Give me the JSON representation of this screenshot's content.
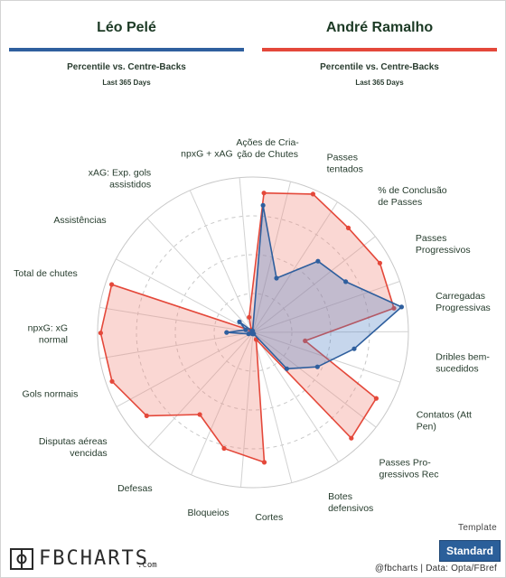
{
  "header": {
    "player1": "Léo Pelé",
    "player2": "André Ramalho",
    "subtitle": "Percentile vs. Centre-Backs",
    "period": "Last 365 Days"
  },
  "footer": {
    "template_label": "Template",
    "template_button": "Standard",
    "logo_text": "FBCHARTS",
    "logo_suffix": ".com",
    "credit": "@fbcharts | Data: Opta/FBref"
  },
  "colors": {
    "player1": "#2f5f9e",
    "player1_fill": "#4f7fc4",
    "player2": "#e4483a",
    "player2_fill": "#f28b82"
  },
  "chart_data": {
    "type": "radar",
    "range": [
      0,
      100
    ],
    "axes": [
      "Ações de Cria-\nção de Chutes",
      "Passes\ntentados",
      "% de Conclusão\nde Passes",
      "Passes\nProgressivos",
      "Carregadas\nProgressivas",
      "Dribles bem-\nsucedidos",
      "Contatos (Att\nPen)",
      "Passes Pro-\ngressivos Rec",
      "Botes\ndefensivos",
      "Cortes",
      "Bloqueios",
      "Defesas",
      "Disputas aéreas\nvencidas",
      "Gols normais",
      "npxG: xG\nnormal",
      "Total de chutes",
      "Assistências",
      "xAG: Exp. gols\nassistidos",
      "npxG + xAG"
    ],
    "series": [
      {
        "name": "Léo Pelé",
        "values": [
          82,
          38,
          62,
          68,
          97,
          66,
          47,
          32,
          1,
          1,
          1,
          1,
          1,
          3,
          17,
          5,
          11,
          1,
          1
        ]
      },
      {
        "name": "André Ramalho",
        "values": [
          90,
          97,
          91,
          93,
          92,
          34,
          90,
          93,
          5,
          84,
          77,
          63,
          87,
          96,
          98,
          96,
          2,
          2,
          10
        ]
      }
    ]
  }
}
